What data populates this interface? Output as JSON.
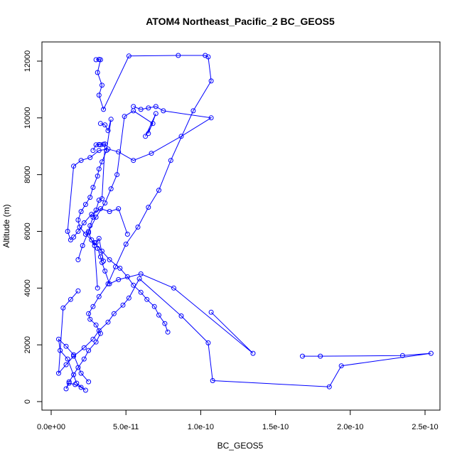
{
  "chart_data": {
    "type": "scatter",
    "title": "ATOM4 Northeast_Pacific_2 BC_GEOS5",
    "xlabel": "BC_GEOS5",
    "ylabel": "Altitude (m)",
    "xlim": [
      0,
      2.5e-10
    ],
    "ylim": [
      0,
      12000
    ],
    "x_ticks": [
      0,
      5e-11,
      1e-10,
      1.5e-10,
      2e-10,
      2.5e-10
    ],
    "x_tick_labels": [
      "0.0e+00",
      "5.0e-11",
      "1.0e-10",
      "1.5e-10",
      "2.0e-10",
      "2.5e-10"
    ],
    "y_ticks": [
      0,
      2000,
      4000,
      6000,
      8000,
      10000,
      12000
    ],
    "y_tick_labels": [
      "0",
      "2000",
      "4000",
      "6000",
      "8000",
      "10000",
      "12000"
    ],
    "grid": false,
    "color": "#0000ff",
    "marker": "open-circle",
    "series": [
      {
        "x": [
          3e-11,
          3.2e-11,
          3.3e-11,
          3.1e-11,
          3.4e-11,
          3.2e-11,
          3.5e-11,
          5.2e-11,
          8.5e-11,
          1.03e-10,
          1.05e-10,
          1.07e-10,
          9.5e-11,
          8e-11,
          7.2e-11,
          6.5e-11,
          5.8e-11,
          5e-11,
          4.3e-11,
          3.8e-11,
          3.2e-11,
          2.8e-11,
          2.5e-11,
          2.6e-11,
          3e-11,
          3.3e-11,
          3e-11,
          2.5e-11,
          2.2e-11,
          1.8e-11,
          1.5e-11,
          1.2e-11,
          1e-11,
          1.2e-11,
          1.6e-11,
          2e-11,
          2.3e-11,
          1.7e-11,
          1.1e-11,
          6e-12,
          5e-12,
          1e-11,
          1.5e-11,
          2e-11,
          2.5e-11
        ],
        "y": [
          12050,
          12060,
          12050,
          11600,
          11150,
          10800,
          10300,
          12180,
          12200,
          12200,
          12150,
          11300,
          10250,
          8500,
          7450,
          6850,
          6150,
          5550,
          4750,
          4150,
          3700,
          3350,
          3100,
          2900,
          2700,
          2400,
          2100,
          1800,
          1500,
          1200,
          950,
          700,
          450,
          650,
          600,
          500,
          400,
          650,
          1500,
          1800,
          2200,
          1950,
          1650,
          1000,
          700
        ]
      },
      {
        "x": [
          5.5e-11,
          6e-11,
          6.5e-11,
          7e-11,
          7.5e-11,
          1.07e-10,
          8.7e-11,
          6.7e-11,
          5.5e-11,
          4.5e-11,
          3.8e-11,
          3.2e-11,
          2.6e-11,
          2e-11,
          1.5e-11,
          1.1e-11,
          1.3e-11,
          1.5e-11,
          1.8e-11,
          2.2e-11,
          2.7e-11,
          3.3e-11,
          3.9e-11,
          4.5e-11,
          5.1e-11
        ],
        "y": [
          10400,
          10300,
          10350,
          10400,
          10250,
          10000,
          9350,
          8750,
          8500,
          8800,
          8900,
          8850,
          8600,
          8500,
          8300,
          6000,
          5700,
          5800,
          6000,
          6300,
          6600,
          6800,
          6700,
          6800,
          5900
        ]
      },
      {
        "x": [
          3.3e-11,
          3.6e-11,
          3.8e-11,
          4e-11,
          3.7e-11,
          3.4e-11,
          3.2e-11,
          3.1e-11,
          2.8e-11,
          2.6e-11,
          2.3e-11,
          2e-11,
          1.8e-11,
          1.9e-11,
          2.3e-11,
          2.9e-11,
          3.4e-11,
          3.9e-11,
          4.6e-11,
          5.1e-11,
          5.5e-11,
          6e-11,
          6.4e-11,
          6.9e-11,
          7.2e-11,
          7.6e-11,
          7.8e-11
        ],
        "y": [
          9800,
          9750,
          9550,
          9950,
          8850,
          8450,
          8200,
          7950,
          7550,
          7200,
          6950,
          6700,
          6400,
          6150,
          5900,
          5600,
          5300,
          5000,
          4700,
          4400,
          4100,
          3850,
          3600,
          3350,
          3050,
          2750,
          2450
        ]
      },
      {
        "x": [
          1.68e-10,
          1.8e-10,
          2.35e-10,
          2.54e-10,
          1.94e-10,
          1.86e-10,
          1.08e-10,
          1.05e-10,
          8.7e-11,
          5.9e-11,
          5.2e-11,
          4.8e-11,
          4.2e-11,
          3.8e-11,
          3.2e-11,
          2.8e-11,
          2.2e-11,
          1.5e-11,
          1e-11,
          5e-12,
          8e-12,
          1.3e-11,
          1.8e-11
        ],
        "y": [
          1600,
          1600,
          1620,
          1700,
          1260,
          520,
          740,
          2070,
          3020,
          4330,
          3650,
          3400,
          3100,
          2800,
          2500,
          2200,
          1900,
          1600,
          1300,
          1000,
          3300,
          3600,
          3900
        ]
      },
      {
        "x": [
          1.07e-10,
          1.35e-10,
          8.2e-11,
          6e-11,
          4.5e-11,
          3.9e-11,
          3.6e-11,
          3.4e-11,
          3.3e-11,
          3.1e-11,
          3e-11,
          3.2e-11,
          3.5e-11
        ],
        "y": [
          3150,
          1700,
          4000,
          4500,
          4300,
          4150,
          4600,
          4900,
          5100,
          5400,
          5600,
          5750,
          4950
        ]
      },
      {
        "x": [
          2.8e-11,
          3e-11,
          3.2e-11,
          3.3e-11,
          3.5e-11,
          3.6e-11,
          3.4e-11,
          3.2e-11,
          3e-11,
          2.8e-11,
          2.6e-11,
          2.5e-11,
          2.7e-11,
          2.9e-11,
          3.1e-11
        ],
        "y": [
          8850,
          9050,
          9060,
          9050,
          9070,
          9080,
          7150,
          7100,
          6750,
          6500,
          6200,
          5950,
          5700,
          5500,
          4000
        ]
      },
      {
        "x": [
          6.5e-11,
          7e-11,
          6.3e-11,
          6.8e-11,
          5.5e-11,
          4.9e-11,
          4.4e-11,
          4e-11,
          3.6e-11,
          3e-11,
          2.5e-11,
          2.1e-11,
          1.8e-11
        ],
        "y": [
          9450,
          10150,
          9350,
          9800,
          10250,
          10050,
          8000,
          7500,
          7000,
          6500,
          6000,
          5500,
          5000
        ]
      }
    ]
  }
}
